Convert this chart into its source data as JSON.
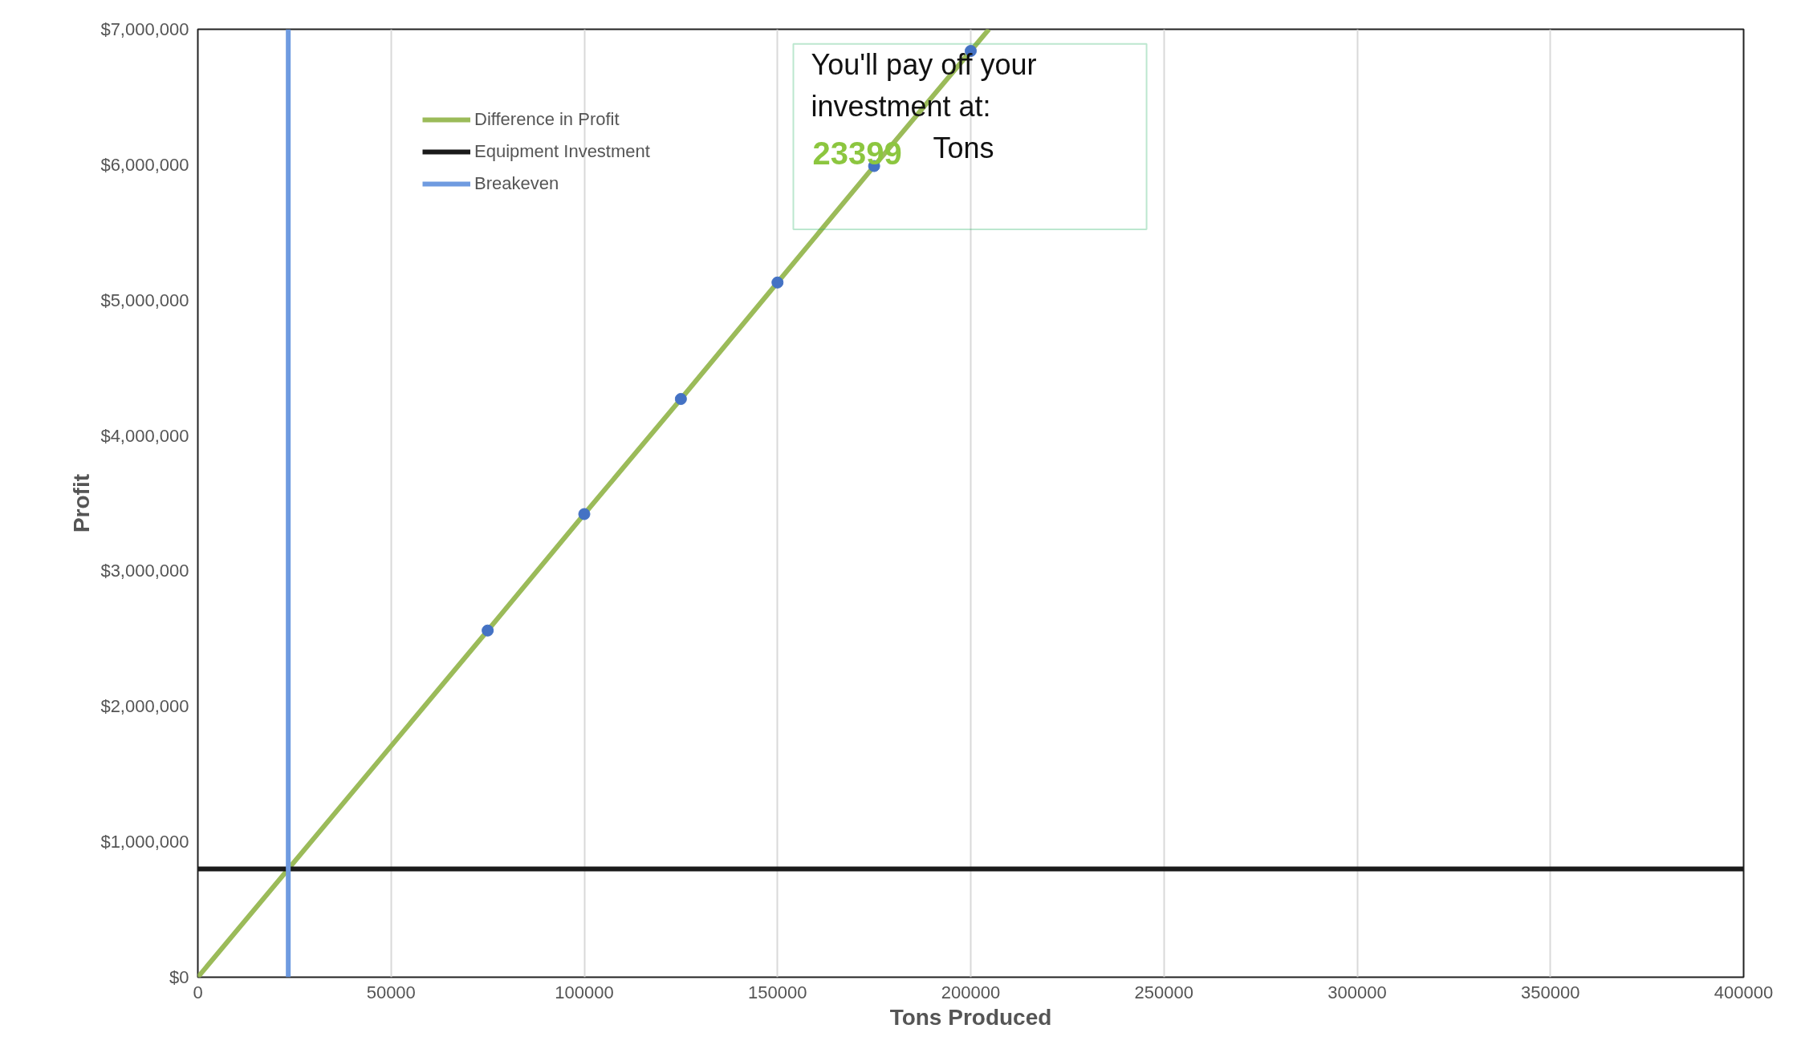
{
  "chart_data": {
    "type": "line",
    "xlabel": "Tons Produced",
    "ylabel": "Profit",
    "series": [
      {
        "name": "Difference in Profit",
        "color": "#9bbb59",
        "x": [
          0,
          75000,
          100000,
          125000,
          150000,
          175000,
          200000,
          204700
        ],
        "values": [
          0,
          2560000,
          3420000,
          4270000,
          5130000,
          5990000,
          6840000,
          7000000
        ]
      },
      {
        "color": "#4472c4",
        "type": "scatter",
        "marker": "circle",
        "x": [
          75000,
          100000,
          125000,
          150000,
          175000,
          200000
        ],
        "values": [
          2560000,
          3420000,
          4270000,
          5130000,
          5990000,
          6840000
        ]
      },
      {
        "name": "Equipment Investment",
        "color": "#1a1a1a",
        "x": [
          0,
          400000
        ],
        "values": [
          800000,
          800000
        ]
      },
      {
        "name": "Breakeven",
        "color": "#6f9be0",
        "x": [
          23399,
          23399
        ],
        "values": [
          0,
          7000000
        ]
      }
    ],
    "annotations": [
      "You'll pay off your investment at:",
      "23399",
      "Tons"
    ],
    "xlim": [
      0,
      400000
    ],
    "ylim": [
      0,
      7000000
    ],
    "xticks": [
      0,
      50000,
      100000,
      150000,
      200000,
      250000,
      300000,
      350000,
      400000
    ],
    "yticks": [
      {
        "value": 0,
        "label": "$0"
      },
      {
        "value": 1000000,
        "label": "$1,000,000"
      },
      {
        "value": 2000000,
        "label": "$2,000,000"
      },
      {
        "value": 3000000,
        "label": "$3,000,000"
      },
      {
        "value": 4000000,
        "label": "$4,000,000"
      },
      {
        "value": 5000000,
        "label": "$5,000,000"
      },
      {
        "value": 6000000,
        "label": "$6,000,000"
      },
      {
        "value": 7000000,
        "label": "$7,000,000"
      }
    ],
    "grid": "x",
    "legend": "top left"
  }
}
